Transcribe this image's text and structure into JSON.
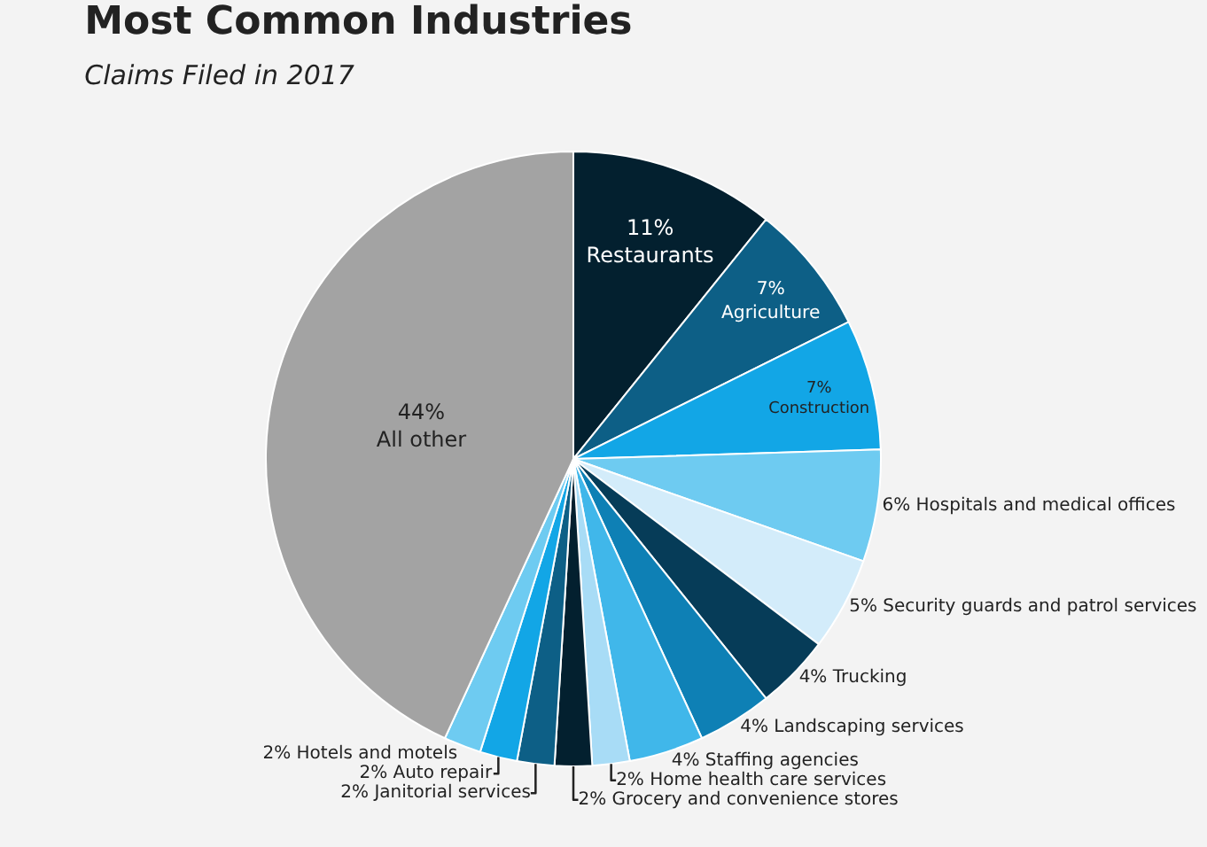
{
  "chart_data": {
    "type": "pie",
    "title": "Most Common Industries",
    "subtitle": "Claims Filed in 2017",
    "categories": [
      "Restaurants",
      "Agriculture",
      "Construction",
      "Hospitals and medical offices",
      "Security guards and patrol services",
      "Trucking",
      "Landscaping services",
      "Staffing agencies",
      "Home health care services",
      "Grocery and convenience stores",
      "Janitorial services",
      "Auto repair",
      "Hotels and motels",
      "All other"
    ],
    "values": [
      11,
      7,
      7,
      6,
      5,
      4,
      4,
      4,
      2,
      2,
      2,
      2,
      2,
      44
    ],
    "colors": [
      "#03202f",
      "#0d5f86",
      "#12a6e6",
      "#6ecbf1",
      "#d3ecfa",
      "#063c58",
      "#0e80b5",
      "#40b7ea",
      "#a8dcf6",
      "#03202f",
      "#0d5f86",
      "#12a6e6",
      "#6ecbf1",
      "#a3a3a3"
    ],
    "value_labels": [
      "11%",
      "7%",
      "7%",
      "6%",
      "5%",
      "4%",
      "4%",
      "4%",
      "2%",
      "2%",
      "2%",
      "2%",
      "2%",
      "44%"
    ],
    "legend": false
  }
}
